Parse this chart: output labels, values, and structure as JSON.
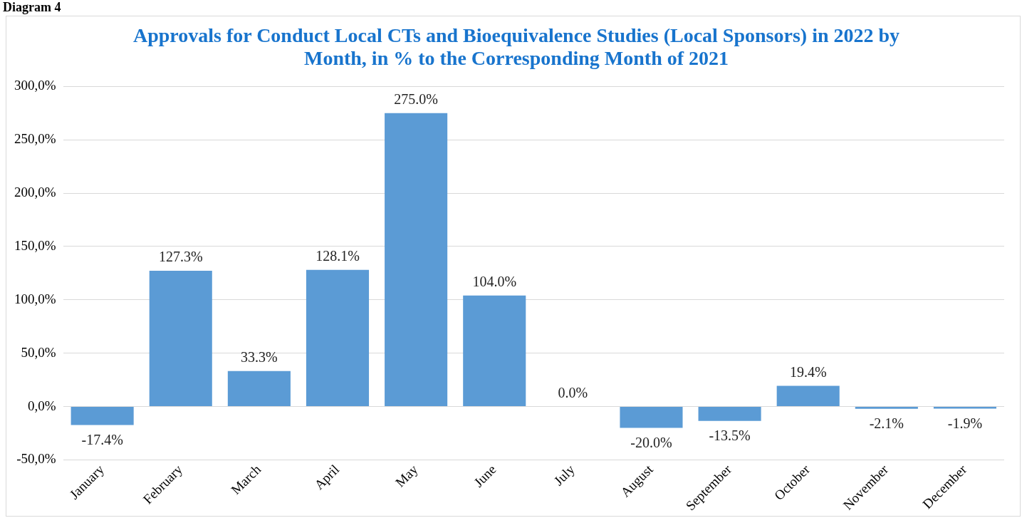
{
  "chart_data": {
    "type": "bar",
    "title": "Approvals for Conduct Local CTs and Bioequivalence Studies (Local Sponsors) in 2022 by Month, in % to the Corresponding Month of 2021",
    "annotations": [
      "Diagram 4"
    ],
    "categories": [
      "January",
      "February",
      "March",
      "April",
      "May",
      "June",
      "July",
      "August",
      "September",
      "October",
      "November",
      "December"
    ],
    "values": [
      -17.4,
      127.3,
      33.3,
      128.1,
      275.0,
      104.0,
      0.0,
      -20.0,
      -13.5,
      19.4,
      -2.1,
      -1.9
    ],
    "value_labels": [
      "-17.4%",
      "127.3%",
      "33.3%",
      "128.1%",
      "275.0%",
      "104.0%",
      "0.0%",
      "-20.0%",
      "-13.5%",
      "19.4%",
      "-2.1%",
      "-1.9%"
    ],
    "color": "#5b9bd5",
    "ylim": [
      -50,
      300
    ],
    "yticks": [
      {
        "value": -50,
        "label": "-50,0%"
      },
      {
        "value": 0,
        "label": "0,0%"
      },
      {
        "value": 50,
        "label": "50,0%"
      },
      {
        "value": 100,
        "label": "100,0%"
      },
      {
        "value": 150,
        "label": "150,0%"
      },
      {
        "value": 200,
        "label": "200,0%"
      },
      {
        "value": 250,
        "label": "250,0%"
      },
      {
        "value": 300,
        "label": "300,0%"
      }
    ],
    "grid": "y",
    "legend": false
  }
}
